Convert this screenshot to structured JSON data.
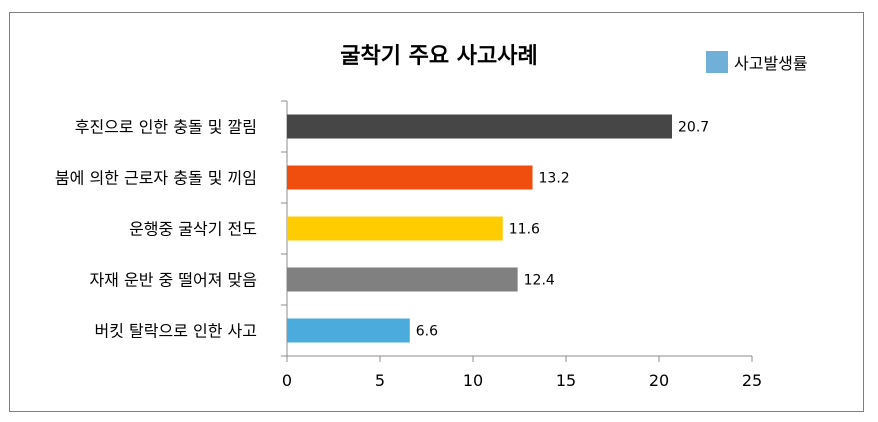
{
  "chart_data": {
    "type": "bar",
    "orientation": "horizontal",
    "title": "굴착기 주요 사고사례",
    "categories": [
      "후진으로 인한 충돌 및 깔림",
      "붐에 의한 근로자 충돌 및 끼임",
      "운행중 굴삭기 전도",
      "자재 운반 중 떨어져 맞음",
      "버킷 탈락으로 인한 사고"
    ],
    "series": [
      {
        "name": "사고발생률",
        "values": [
          20.7,
          13.2,
          11.6,
          12.4,
          6.6
        ],
        "value_labels": [
          "20.7",
          "13.2",
          "11.6",
          "12.4",
          "6.6"
        ]
      }
    ],
    "bar_colors": [
      "#464646",
      "#f04e0f",
      "#ffcc00",
      "#808080",
      "#4aabdc"
    ],
    "legend_color": "#70b0d8",
    "xlim": [
      0,
      25
    ],
    "xticks": [
      0,
      5,
      10,
      15,
      20,
      25
    ],
    "xtick_labels": [
      "0",
      "5",
      "10",
      "15",
      "20",
      "25"
    ],
    "grid": false,
    "legend_position": "top-right"
  }
}
